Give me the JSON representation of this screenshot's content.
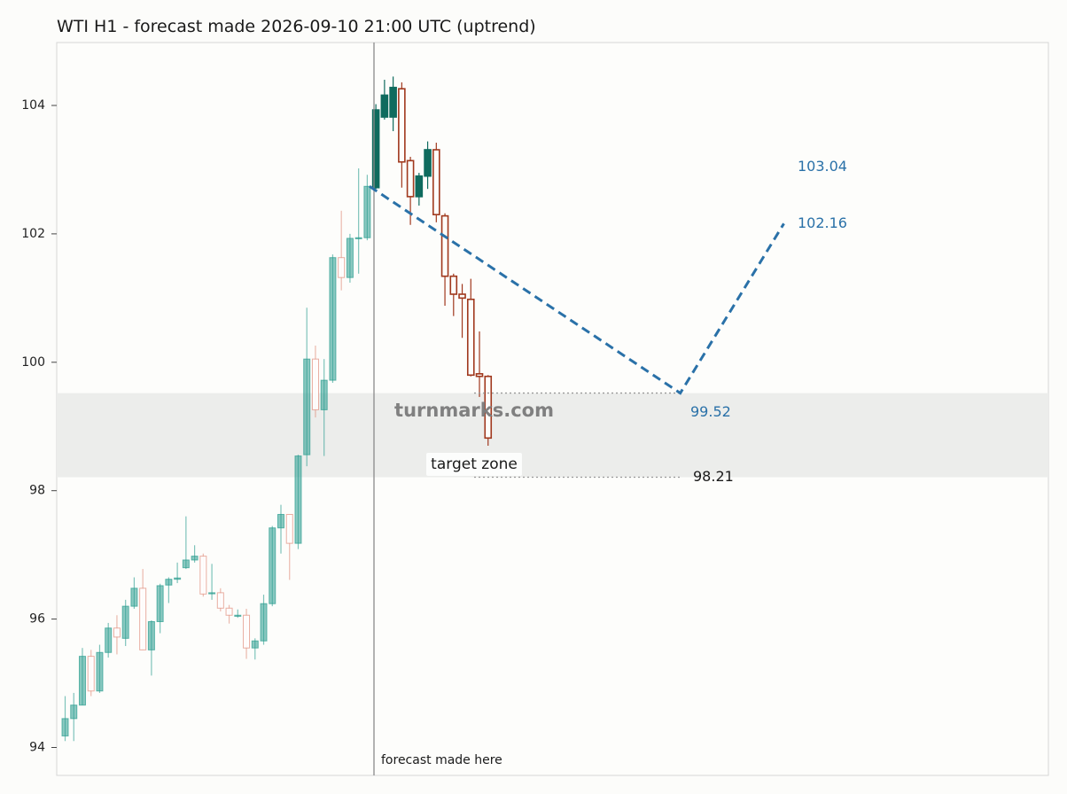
{
  "chart_data": {
    "type": "candlestick",
    "title": "WTI H1 - forecast made 2026-09-10 21:00 UTC (uptrend)",
    "y_ticks": [
      94,
      96,
      98,
      100,
      102,
      104
    ],
    "ylim": [
      93.6,
      105.0
    ],
    "grid": false,
    "colors": {
      "history_up": "#2a9d8f",
      "history_down": "#e08c7a",
      "recent_up": "#0f6b5e",
      "recent_down": "#a0381d",
      "forecast": "#2a71a8",
      "zone": "#ecedeb",
      "divider": "#8a8a8a"
    },
    "history_candles": [
      [
        94.18,
        94.45,
        94.8,
        94.1
      ],
      [
        94.45,
        94.66,
        94.85,
        94.1
      ],
      [
        94.66,
        95.42,
        95.55,
        94.66
      ],
      [
        95.42,
        94.88,
        95.52,
        94.8
      ],
      [
        94.88,
        95.48,
        95.6,
        94.85
      ],
      [
        95.48,
        95.86,
        95.94,
        95.4
      ],
      [
        95.86,
        95.72,
        96.06,
        95.45
      ],
      [
        95.7,
        96.2,
        96.3,
        95.58
      ],
      [
        96.2,
        96.48,
        96.65,
        96.16
      ],
      [
        96.48,
        95.52,
        96.78,
        95.52
      ],
      [
        95.52,
        95.96,
        95.98,
        95.12
      ],
      [
        95.96,
        96.52,
        96.55,
        95.78
      ],
      [
        96.53,
        96.62,
        96.65,
        96.25
      ],
      [
        96.62,
        96.64,
        96.88,
        96.56
      ],
      [
        96.8,
        96.92,
        97.6,
        96.78
      ],
      [
        96.92,
        96.98,
        97.15,
        96.88
      ],
      [
        96.98,
        96.39,
        97.02,
        96.35
      ],
      [
        96.4,
        96.41,
        96.86,
        96.3
      ],
      [
        96.41,
        96.17,
        96.48,
        96.12
      ],
      [
        96.17,
        96.06,
        96.22,
        95.93
      ],
      [
        96.05,
        96.06,
        96.15,
        96.02
      ],
      [
        96.06,
        95.55,
        96.16,
        95.38
      ],
      [
        95.55,
        95.66,
        95.7,
        95.37
      ],
      [
        95.66,
        96.24,
        96.38,
        95.6
      ],
      [
        96.24,
        97.42,
        97.45,
        96.2
      ],
      [
        97.42,
        97.63,
        97.78,
        97.02
      ],
      [
        97.63,
        97.18,
        97.63,
        96.61
      ],
      [
        97.18,
        98.54,
        98.56,
        97.09
      ],
      [
        98.56,
        100.05,
        100.85,
        98.38
      ],
      [
        100.05,
        99.26,
        100.26,
        99.14
      ],
      [
        99.26,
        99.72,
        100.05,
        98.54
      ],
      [
        99.72,
        101.63,
        101.68,
        99.68
      ],
      [
        101.63,
        101.32,
        102.36,
        101.12
      ],
      [
        101.32,
        101.93,
        102.0,
        101.24
      ],
      [
        101.93,
        101.94,
        103.02,
        101.38
      ],
      [
        101.94,
        102.74,
        102.92,
        101.9
      ]
    ],
    "recent_candles": [
      [
        102.72,
        103.93,
        104.02,
        102.7
      ],
      [
        103.82,
        104.16,
        104.4,
        103.78
      ],
      [
        103.82,
        104.28,
        104.45,
        103.6
      ],
      [
        104.26,
        103.12,
        104.36,
        102.72
      ],
      [
        103.14,
        102.58,
        103.2,
        102.14
      ],
      [
        102.58,
        102.9,
        102.95,
        102.44
      ],
      [
        102.9,
        103.31,
        103.44,
        102.7
      ],
      [
        103.31,
        102.3,
        103.42,
        102.18
      ],
      [
        102.28,
        101.34,
        102.32,
        100.88
      ],
      [
        101.34,
        101.06,
        101.38,
        100.72
      ],
      [
        101.06,
        101.0,
        101.22,
        100.38
      ],
      [
        100.98,
        99.8,
        101.3,
        99.78
      ],
      [
        99.82,
        99.78,
        100.48,
        99.46
      ],
      [
        99.78,
        98.82,
        99.8,
        98.7
      ]
    ],
    "forecast_line": [
      {
        "step": 0,
        "value": 102.74
      },
      {
        "step": 36,
        "value": 99.52
      },
      {
        "step": 48,
        "value": 102.16
      }
    ],
    "forecast_levels": {
      "upper_label": "103.04",
      "end_label": "102.16",
      "mid_label": "99.52",
      "low_label": "98.21"
    },
    "target_zone": [
      98.21,
      99.52
    ],
    "target_label": "target zone",
    "divider_label": "forecast made here",
    "watermark": "turnmarks.com"
  }
}
